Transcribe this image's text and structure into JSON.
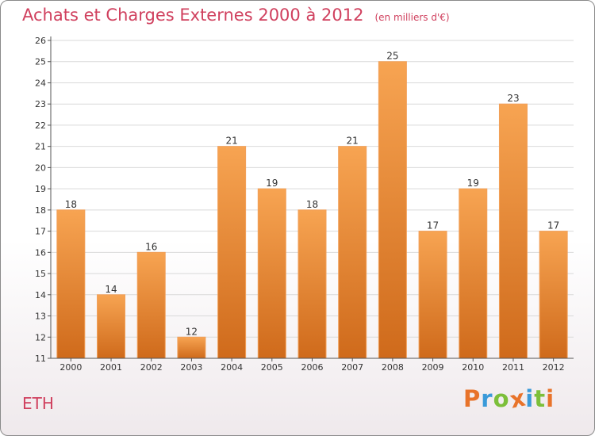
{
  "header": {
    "title": "Achats et Charges Externes 2000 à 2012",
    "unit": "(en milliers d'€)"
  },
  "location": "ETH",
  "brand": {
    "name": "Proxiti",
    "colors": [
      "#e8732a",
      "#3a9ad9",
      "#7cbf3a",
      "#e8732a",
      "#3a9ad9",
      "#7cbf3a",
      "#e8732a"
    ]
  },
  "chart_data": {
    "type": "bar",
    "categories": [
      "2000",
      "2001",
      "2002",
      "2003",
      "2004",
      "2005",
      "2006",
      "2007",
      "2008",
      "2009",
      "2010",
      "2011",
      "2012"
    ],
    "values": [
      18,
      14,
      16,
      12,
      21,
      19,
      18,
      21,
      25,
      17,
      19,
      23,
      17
    ],
    "title": "Achats et Charges Externes 2000 à 2012",
    "ylim": [
      11,
      26
    ],
    "yticks": [
      11,
      12,
      13,
      14,
      15,
      16,
      17,
      18,
      19,
      20,
      21,
      22,
      23,
      24,
      25,
      26
    ],
    "grid": true,
    "data_labels": true,
    "bar_color_top": "#f7a452",
    "bar_color_bottom": "#cf6a1b"
  }
}
